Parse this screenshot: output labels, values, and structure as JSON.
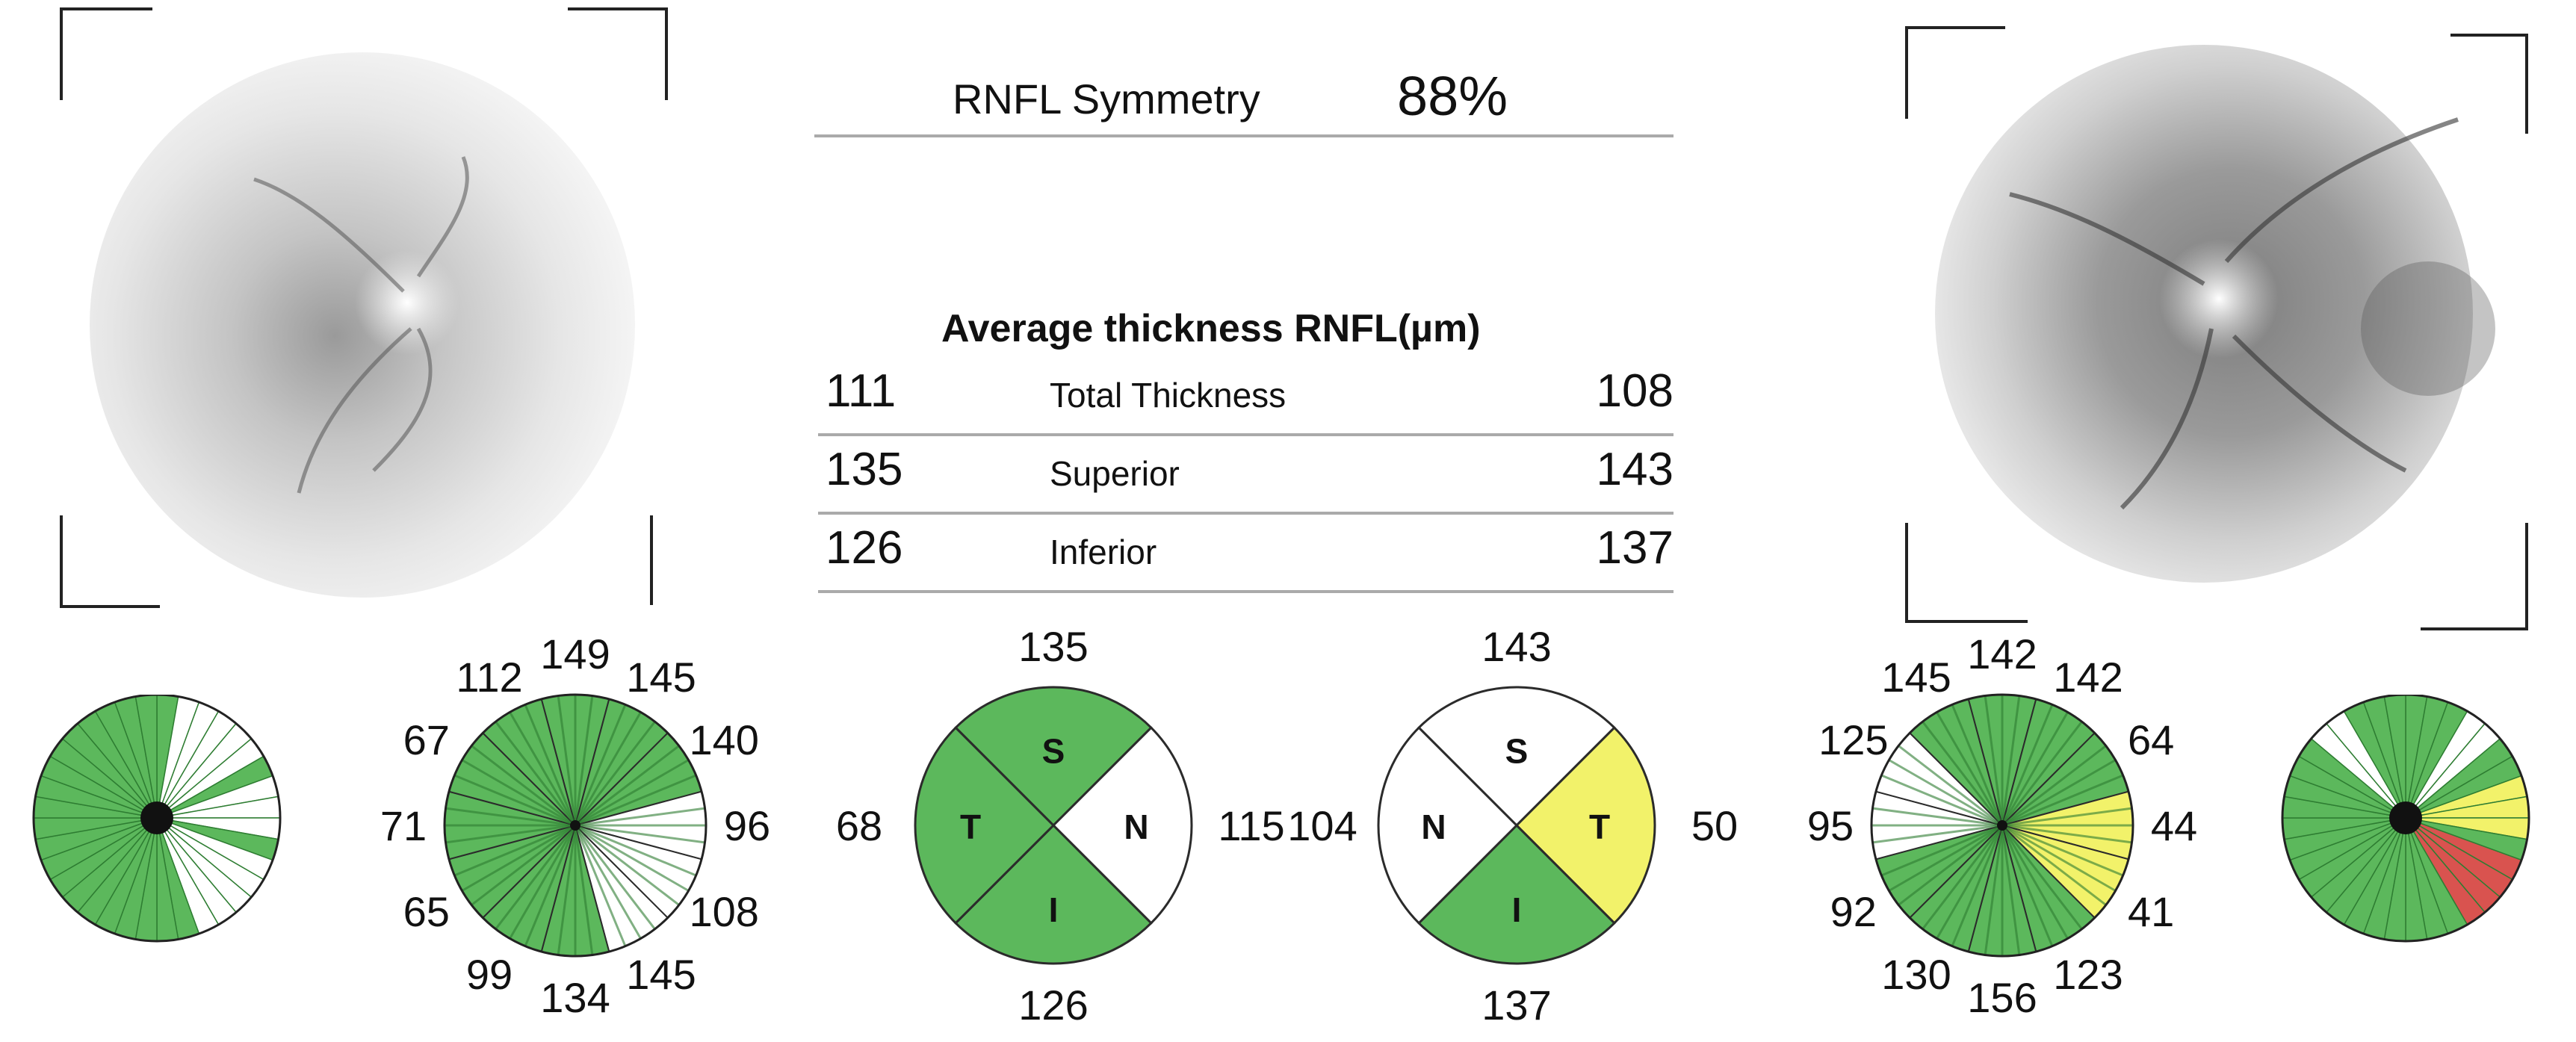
{
  "symmetry": {
    "label": "RNFL Symmetry",
    "value": "88%"
  },
  "average": {
    "title": "Average thickness RNFL(µm)",
    "rows": [
      {
        "left": "111",
        "label": "Total Thickness",
        "right": "108"
      },
      {
        "left": "135",
        "label": "Superior",
        "right": "143"
      },
      {
        "left": "126",
        "label": "Inferior",
        "right": "137"
      }
    ]
  },
  "colors": {
    "normal": "#5cb85c",
    "borderline": "#f2f26a",
    "abnormal": "#d9534f",
    "line": "#2e7d32"
  },
  "clock_left": {
    "values": [
      "149",
      "145",
      "140",
      "96",
      "108",
      "145",
      "134",
      "99",
      "65",
      "71",
      "67",
      "112"
    ],
    "status": [
      "normal",
      "normal",
      "normal",
      "white",
      "white",
      "white",
      "normal",
      "normal",
      "normal",
      "normal",
      "normal",
      "normal"
    ]
  },
  "quadrant_left": {
    "values": {
      "top": "135",
      "left": "68",
      "right": "115",
      "bottom": "126"
    },
    "letters": {
      "top": "S",
      "left": "T",
      "right": "N",
      "bottom": "I"
    }
  },
  "quadrant_right": {
    "values": {
      "top": "143",
      "left": "104",
      "right": "50",
      "bottom": "137"
    },
    "letters": {
      "top": "S",
      "left": "N",
      "right": "T",
      "bottom": "I"
    }
  },
  "clock_right": {
    "values": [
      "142",
      "142",
      "64",
      "44",
      "41",
      "123",
      "156",
      "130",
      "92",
      "95",
      "125",
      "145"
    ],
    "status": [
      "normal",
      "normal",
      "normal",
      "borderline",
      "borderline",
      "normal",
      "normal",
      "normal",
      "normal",
      "white",
      "white",
      "normal"
    ]
  }
}
